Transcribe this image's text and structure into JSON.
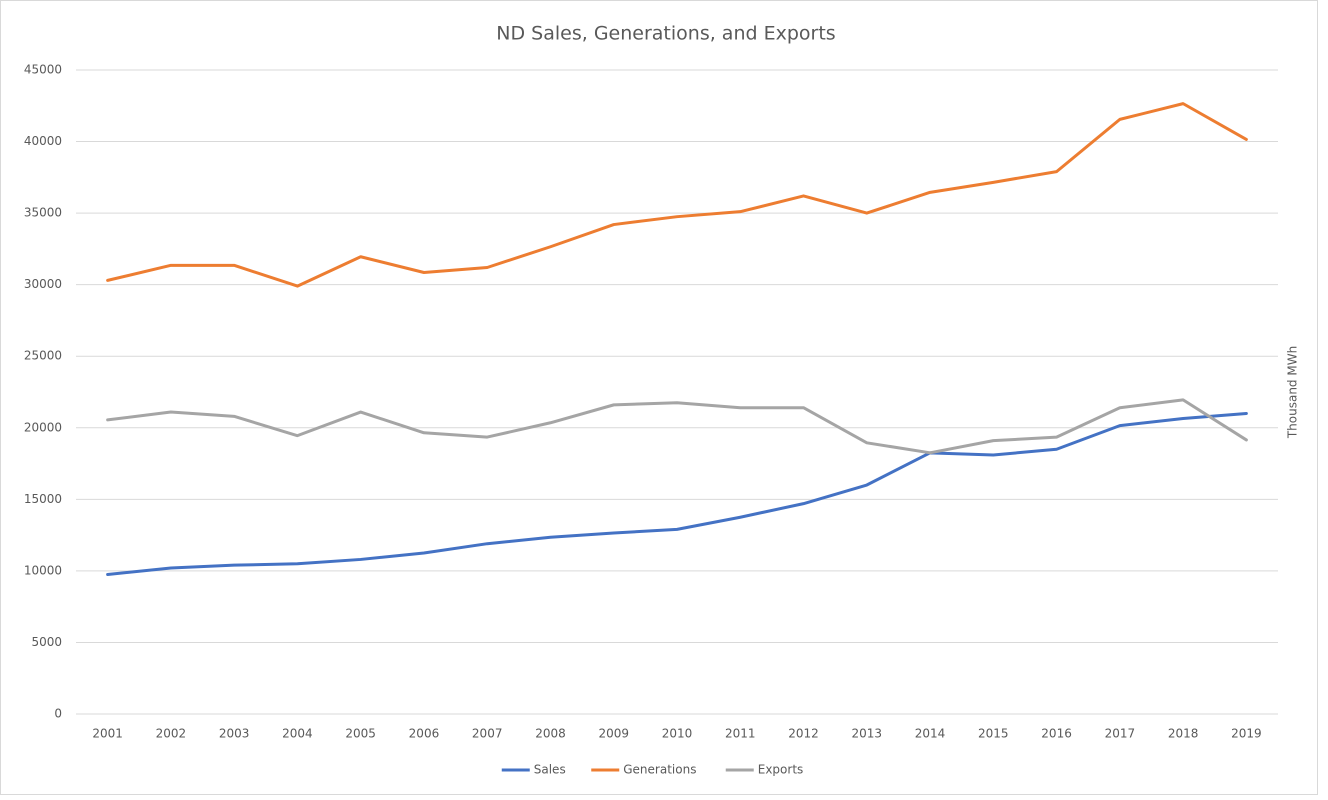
{
  "chart_data": {
    "type": "line",
    "title": "ND Sales, Generations, and Exports",
    "y_label": "Thousand MWh",
    "categories": [
      "2001",
      "2002",
      "2003",
      "2004",
      "2005",
      "2006",
      "2007",
      "2008",
      "2009",
      "2010",
      "2011",
      "2012",
      "2013",
      "2014",
      "2015",
      "2016",
      "2017",
      "2018",
      "2019"
    ],
    "series": [
      {
        "name": "Sales",
        "color": "#4472c4",
        "values": [
          9750,
          10200,
          10400,
          10500,
          10800,
          11250,
          11900,
          12350,
          12650,
          12900,
          13750,
          14700,
          16000,
          18250,
          18100,
          18500,
          20150,
          20650,
          21000
        ]
      },
      {
        "name": "Generations",
        "color": "#ed7d31",
        "values": [
          30300,
          31350,
          31350,
          29900,
          31950,
          30850,
          31200,
          32650,
          34200,
          34750,
          35100,
          36200,
          35000,
          36450,
          37150,
          37900,
          41550,
          42650,
          40150
        ]
      },
      {
        "name": "Exports",
        "color": "#a5a5a5",
        "values": [
          20550,
          21100,
          20800,
          19450,
          21100,
          19650,
          19350,
          20350,
          21600,
          21750,
          21400,
          21400,
          18950,
          18250,
          19100,
          19350,
          21400,
          21950,
          19150
        ]
      }
    ],
    "ylim": [
      0,
      45000
    ],
    "yticks": [
      0,
      5000,
      10000,
      15000,
      20000,
      25000,
      30000,
      35000,
      40000,
      45000
    ],
    "grid": true,
    "legend": "bottom"
  }
}
